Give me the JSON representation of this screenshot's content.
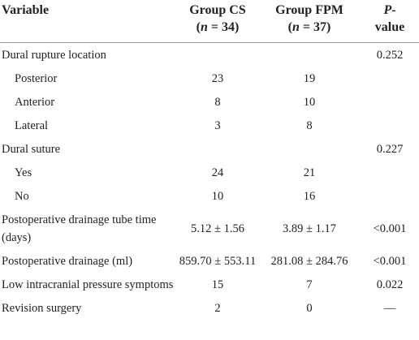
{
  "table": {
    "header": {
      "variable": "Variable",
      "group_cs": {
        "line1": "Group CS",
        "open": "(",
        "n": "n",
        "rest": " = 34)"
      },
      "group_fpm": {
        "line1": "Group FPM",
        "open": "(",
        "n": "n",
        "rest": " = 37)"
      },
      "p_value": {
        "p": "P",
        "dash": "-",
        "line2": "value"
      }
    },
    "rows": [
      {
        "label": "Dural rupture location",
        "indent": false,
        "cs": null,
        "fpm": null,
        "p": "0.252"
      },
      {
        "label": "Posterior",
        "indent": true,
        "cs": "23",
        "fpm": "19",
        "p": null
      },
      {
        "label": "Anterior",
        "indent": true,
        "cs": "8",
        "fpm": "10",
        "p": null
      },
      {
        "label": "Lateral",
        "indent": true,
        "cs": "3",
        "fpm": "8",
        "p": null
      },
      {
        "label": "Dural suture",
        "indent": false,
        "cs": null,
        "fpm": null,
        "p": "0.227"
      },
      {
        "label": "Yes",
        "indent": true,
        "cs": "24",
        "fpm": "21",
        "p": null
      },
      {
        "label": "No",
        "indent": true,
        "cs": "10",
        "fpm": "16",
        "p": null
      },
      {
        "label": "Postoperative drainage tube time (days)",
        "indent": false,
        "cs": "5.12 ± 1.56",
        "fpm": "3.89 ± 1.17",
        "p": "<0.001"
      },
      {
        "label": "Postoperative drainage (ml)",
        "indent": false,
        "cs": "859.70 ± 553.11",
        "fpm": "281.08 ± 284.76",
        "p": "<0.001"
      },
      {
        "label": "Low intracranial pressure symptoms",
        "indent": false,
        "cs": "15",
        "fpm": "7",
        "p": "0.022"
      },
      {
        "label": "Revision surgery",
        "indent": false,
        "cs": "2",
        "fpm": "0",
        "p": "—"
      }
    ]
  }
}
